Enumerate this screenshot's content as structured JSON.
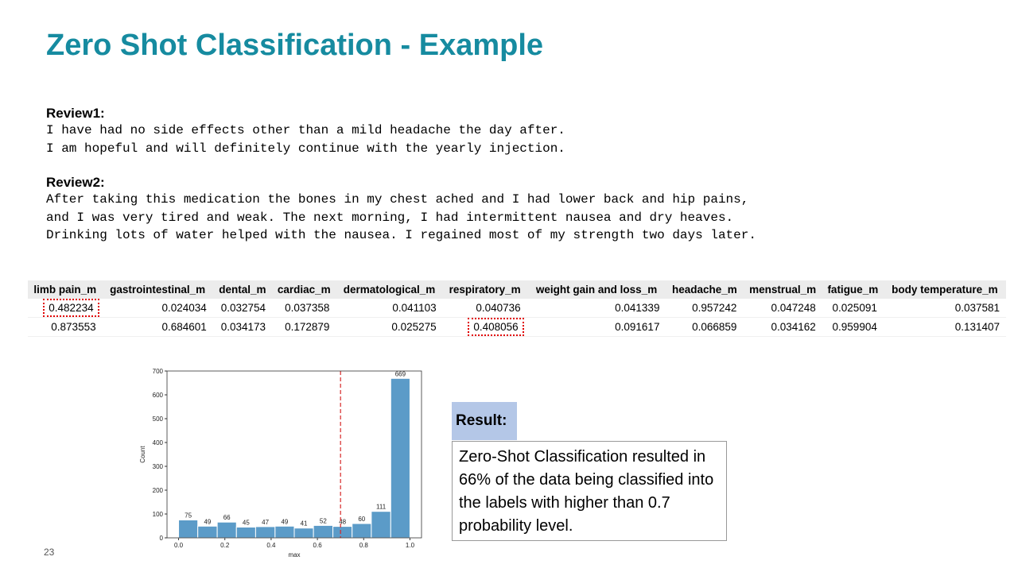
{
  "title": "Zero Shot Classification - Example",
  "reviews": [
    {
      "heading": "Review1:",
      "lines": [
        "I have had no side effects other than a mild headache the day after.",
        "I am hopeful and will definitely continue with the yearly injection."
      ]
    },
    {
      "heading": "Review2:",
      "lines": [
        "After taking this medication the bones in my chest ached and I had lower back and hip pains,",
        "and I was very tired and weak. The next morning, I had intermittent nausea and dry heaves.",
        "Drinking lots of water helped with the nausea. I regained most of my strength two days later."
      ]
    }
  ],
  "table": {
    "headers": [
      "limb pain_m",
      "gastrointestinal_m",
      "dental_m",
      "cardiac_m",
      "dermatological_m",
      "respiratory_m",
      "weight gain and loss_m",
      "headache_m",
      "menstrual_m",
      "fatigue_m",
      "body temperature_m"
    ],
    "rows": [
      [
        0.482234,
        0.024034,
        0.032754,
        0.037358,
        0.041103,
        0.040736,
        0.041339,
        0.957242,
        0.047248,
        0.025091,
        0.037581
      ],
      [
        0.873553,
        0.684601,
        0.034173,
        0.172879,
        0.025275,
        0.408056,
        0.091617,
        0.066859,
        0.034162,
        0.959904,
        0.131407
      ]
    ]
  },
  "chart_data": {
    "type": "histogram",
    "bins": [
      0,
      0.083,
      0.167,
      0.25,
      0.333,
      0.417,
      0.5,
      0.583,
      0.667,
      0.75,
      0.833,
      0.917,
      1.0
    ],
    "values": [
      75,
      49,
      66,
      45,
      47,
      49,
      41,
      52,
      48,
      60,
      111,
      669
    ],
    "color": "#5b9bc8",
    "threshold": 0.7,
    "threshold_color": "#d62728",
    "xlabel": "max",
    "ylabel": "Count",
    "xlim": [
      -0.05,
      1.05
    ],
    "xticks": [
      {
        "value": 0,
        "label": "0.0"
      },
      0.2,
      0.4,
      0.6,
      0.8,
      {
        "value": 1,
        "label": "1.0"
      }
    ],
    "ylim": [
      0,
      700
    ],
    "yticks": [
      0,
      100,
      200,
      300,
      400,
      500,
      600,
      700
    ]
  },
  "result": {
    "heading": "Result:",
    "text": "Zero-Shot Classification resulted in 66% of the data being classified into the labels with higher than 0.7 probability level."
  },
  "page_number": "23"
}
